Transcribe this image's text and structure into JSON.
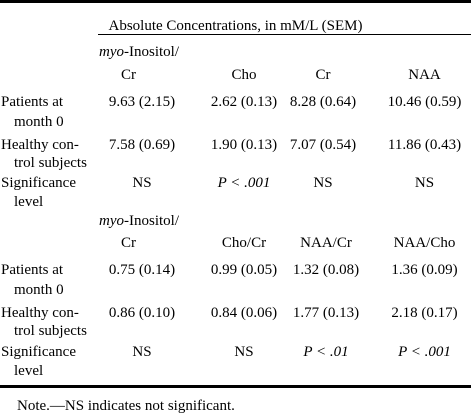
{
  "table": {
    "caption": "Absolute Concentrations, in mM/L (SEM)",
    "section1": {
      "headers": [
        {
          "line1": "myo",
          "line1b": "-Inositol/",
          "line2": "Cr"
        },
        {
          "line1": "",
          "line1b": "",
          "line2": "Cho"
        },
        {
          "line1": "",
          "line1b": "",
          "line2": "Cr"
        },
        {
          "line1": "",
          "line1b": "",
          "line2": "NAA"
        }
      ],
      "rows": [
        {
          "label1": "Patients at",
          "label2": "month 0",
          "values": [
            "9.63 (2.15)",
            "2.62 (0.13)",
            "8.28 (0.64)",
            "10.46 (0.59)"
          ]
        },
        {
          "label1": "Healthy con-",
          "label2": "trol subjects",
          "values": [
            "7.58 (0.69)",
            "1.90 (0.13)",
            "7.07 (0.54)",
            "11.86 (0.43)"
          ]
        },
        {
          "label1": "Significance",
          "label2": "level",
          "values": [
            "NS",
            "P < .001",
            "NS",
            "NS"
          ]
        }
      ]
    },
    "section2": {
      "headers": [
        {
          "line1": "myo",
          "line1b": "-Inositol/",
          "line2": "Cr"
        },
        {
          "line1": "",
          "line1b": "",
          "line2": "Cho/Cr"
        },
        {
          "line1": "",
          "line1b": "",
          "line2": "NAA/Cr"
        },
        {
          "line1": "",
          "line1b": "",
          "line2": "NAA/Cho"
        }
      ],
      "rows": [
        {
          "label1": "Patients at",
          "label2": "month 0",
          "values": [
            "0.75 (0.14)",
            "0.99 (0.05)",
            "1.32 (0.08)",
            "1.36 (0.09)"
          ]
        },
        {
          "label1": "Healthy con-",
          "label2": "trol subjects",
          "values": [
            "0.86 (0.10)",
            "0.84 (0.06)",
            "1.77 (0.13)",
            "2.18 (0.17)"
          ]
        },
        {
          "label1": "Significance",
          "label2": "level",
          "values": [
            "NS",
            "NS",
            "P < .01",
            "P < .001"
          ]
        }
      ]
    },
    "note": "Note.—NS indicates not significant."
  }
}
